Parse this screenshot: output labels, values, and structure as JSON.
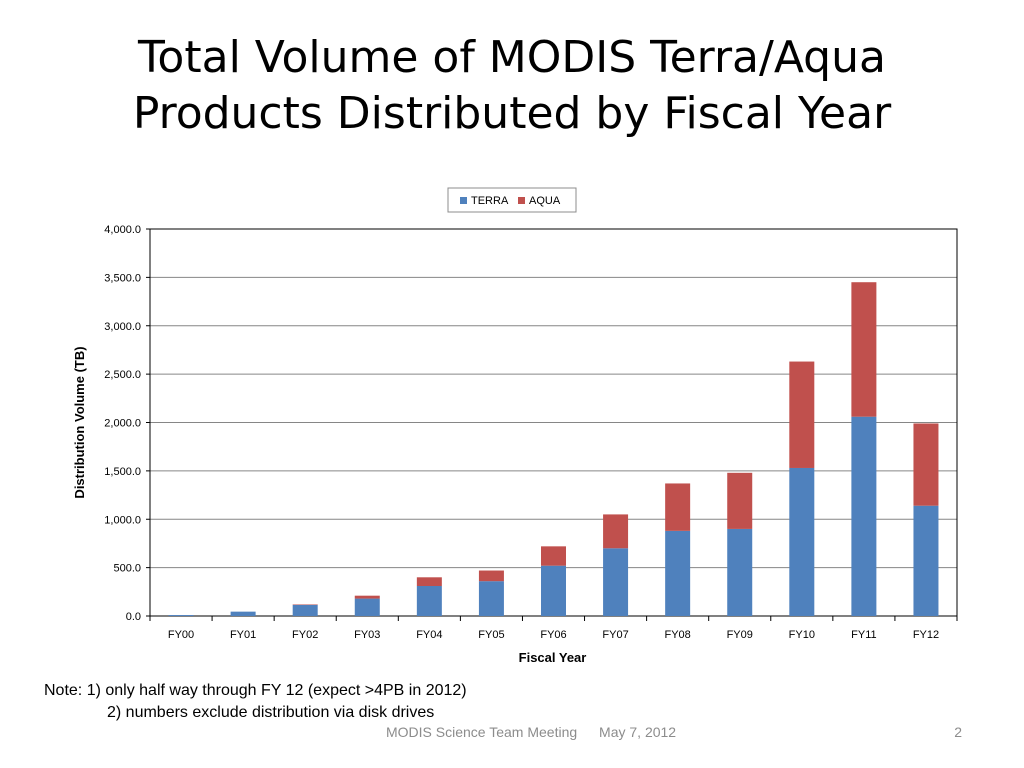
{
  "slide": {
    "title_line1": "Total Volume of MODIS Terra/Aqua",
    "title_line2": "Products Distributed by Fiscal Year",
    "note_line1": "Note:   1)  only half way through FY 12 (expect >4PB in 2012)",
    "note_line2": "2) numbers exclude distribution via disk drives",
    "footer_meeting": "MODIS Science Team Meeting",
    "footer_date": "May 7, 2012",
    "page_number": "2"
  },
  "chart_data": {
    "type": "bar",
    "stacked": true,
    "title": "",
    "xlabel": "Fiscal Year",
    "ylabel": "Distribution Volume (TB)",
    "ylim": [
      0,
      4000
    ],
    "yticks": [
      "0.0",
      "500.0",
      "1,000.0",
      "1,500.0",
      "2,000.0",
      "2,500.0",
      "3,000.0",
      "3,500.0",
      "4,000.0"
    ],
    "grid": true,
    "legend_position": "top",
    "categories": [
      "FY00",
      "FY01",
      "FY02",
      "FY03",
      "FY04",
      "FY05",
      "FY06",
      "FY07",
      "FY08",
      "FY09",
      "FY10",
      "FY11",
      "FY12"
    ],
    "series": [
      {
        "name": "TERRA",
        "color": "#4f81bd",
        "values": [
          10,
          45,
          115,
          180,
          310,
          360,
          520,
          700,
          880,
          900,
          1530,
          2060,
          1140
        ]
      },
      {
        "name": "AQUA",
        "color": "#c0504d",
        "values": [
          0,
          0,
          5,
          30,
          90,
          110,
          200,
          350,
          490,
          580,
          1100,
          1390,
          850
        ]
      }
    ]
  }
}
